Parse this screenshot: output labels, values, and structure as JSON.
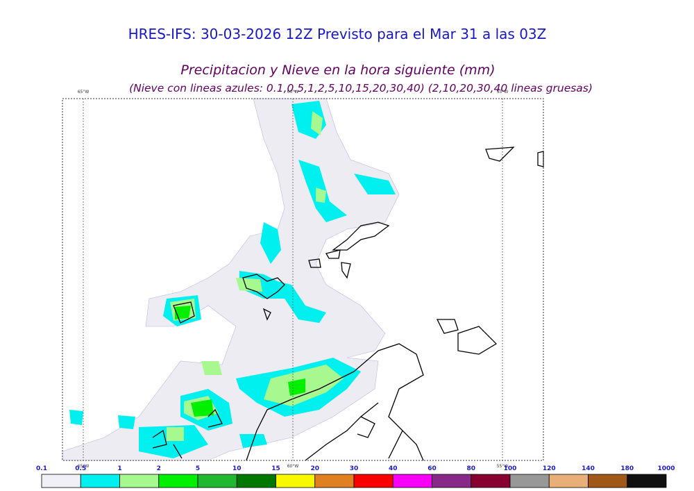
{
  "header": {
    "title": "HRES-IFS: 30-03-2026 12Z Previsto para el Mar 31 a las 03Z",
    "subtitle": "Precipitacion y Nieve en la hora siguiente (mm)",
    "note": "(Nieve con lineas azules: 0.1,0.5,1,2,5,10,15,20,30,40)  (2,10,20,30,40 lineas gruesas)"
  },
  "map": {
    "longitude_labels": [
      "65°W",
      "60°W",
      "55°W"
    ]
  },
  "colorbar": {
    "levels": [
      0.1,
      0.5,
      1,
      2,
      5,
      10,
      15,
      20,
      30,
      40,
      60,
      80,
      100,
      120,
      140,
      180,
      1000
    ],
    "colors": [
      "#f0f0f6",
      "#00f0f0",
      "#a8f890",
      "#00f000",
      "#20b830",
      "#007800",
      "#f8f800",
      "#e08020",
      "#f80000",
      "#f800f8",
      "#882888",
      "#880030",
      "#989898",
      "#e8b078",
      "#a05818",
      "#101010"
    ]
  }
}
